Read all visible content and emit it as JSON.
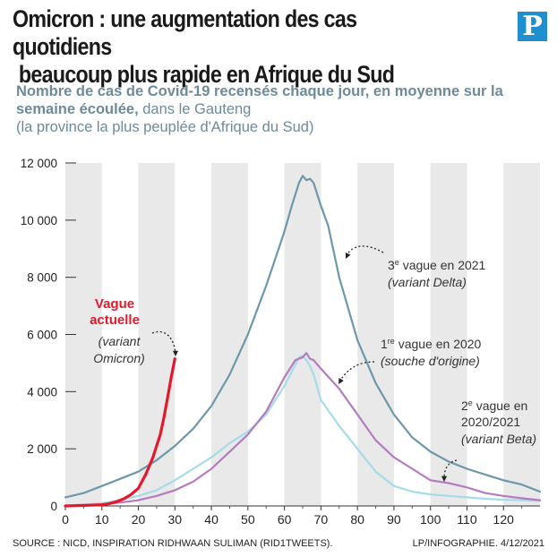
{
  "title_line1": "Omicron : une augmentation des cas quotidiens",
  "title_line2": "beaucoup plus rapide en Afrique du Sud",
  "logo": "P",
  "subtitle_bold": "Nombre de cas de Covid-19 recensés chaque jour, en moyenne sur la semaine écoulée,",
  "subtitle_normal": " dans le Gauteng",
  "subtitle_line3": "(la province la plus peuplée d'Afrique du Sud)",
  "source": "SOURCE : NICD, INSPIRATION RIDHWAAN SULIMAN (RID1TWEETS).",
  "credit": "LP/INFOGRAPHIE.  4/12/2021",
  "annotations": {
    "current_l1": "Vague",
    "current_l2": "actuelle",
    "current_l3": "(variant",
    "current_l4": "Omicron)",
    "w3_sup": "e",
    "w3_pre": "3",
    "w3_rest": " vague en 2021",
    "w3_l2": "(variant Delta)",
    "w1_pre": "1",
    "w1_sup": "re",
    "w1_rest": " vague en 2020",
    "w1_l2": "(souche d'origine)",
    "w2_pre": "2",
    "w2_sup": "e",
    "w2_rest": " vague en",
    "w2_l2": "2020/2021",
    "w2_l3": "(variant Beta)"
  },
  "colors": {
    "current": "#e3192b",
    "wave3": "#6d97ab",
    "wave1": "#b47cc0",
    "wave2": "#a6dbea",
    "stripe": "#e9e9e9",
    "axis_text": "#222222"
  },
  "chart_data": {
    "type": "line",
    "title": "Omicron : une augmentation des cas quotidiens beaucoup plus rapide en Afrique du Sud",
    "xlim": [
      0,
      130
    ],
    "ylim": [
      0,
      12000
    ],
    "xticks": [
      0,
      10,
      20,
      30,
      40,
      50,
      60,
      70,
      80,
      90,
      100,
      110,
      120
    ],
    "yticks": [
      0,
      2000,
      4000,
      6000,
      8000,
      10000,
      12000
    ],
    "ytick_labels": [
      "0",
      "2 000",
      "4 000",
      "6 000",
      "8 000",
      "10 000",
      "12 000"
    ],
    "grid": "alternating vertical bands",
    "series": [
      {
        "name": "Vague actuelle (variant Omicron)",
        "color_key": "current",
        "x": [
          0,
          5,
          10,
          12,
          14,
          16,
          18,
          20,
          22,
          24,
          26,
          27,
          28,
          29,
          30
        ],
        "y": [
          0,
          20,
          40,
          80,
          150,
          250,
          400,
          620,
          1100,
          1700,
          2500,
          3100,
          3800,
          4500,
          5150
        ]
      },
      {
        "name": "3e vague en 2021 (variant Delta)",
        "color_key": "wave3",
        "x": [
          0,
          5,
          10,
          15,
          20,
          25,
          30,
          35,
          40,
          45,
          50,
          55,
          60,
          62,
          64,
          65,
          66,
          67,
          68,
          70,
          72,
          75,
          80,
          85,
          90,
          95,
          100,
          105,
          110,
          115,
          120,
          125,
          130
        ],
        "y": [
          300,
          450,
          700,
          950,
          1200,
          1600,
          2100,
          2700,
          3500,
          4600,
          6000,
          7700,
          9600,
          10500,
          11300,
          11550,
          11400,
          11450,
          11300,
          10500,
          9800,
          8000,
          5800,
          4300,
          3200,
          2400,
          1900,
          1550,
          1300,
          1100,
          900,
          750,
          500
        ]
      },
      {
        "name": "1re vague en 2020 (souche d'origine)",
        "color_key": "wave1",
        "x": [
          0,
          5,
          10,
          15,
          20,
          25,
          30,
          35,
          40,
          45,
          50,
          55,
          60,
          63,
          65,
          66,
          67,
          68,
          70,
          75,
          80,
          85,
          90,
          95,
          100,
          105,
          110,
          115,
          120,
          125,
          130
        ],
        "y": [
          0,
          20,
          60,
          120,
          200,
          350,
          550,
          850,
          1300,
          1900,
          2500,
          3300,
          4500,
          5100,
          5200,
          5350,
          5150,
          5100,
          4800,
          4100,
          3200,
          2300,
          1700,
          1300,
          900,
          800,
          650,
          450,
          350,
          270,
          200
        ]
      },
      {
        "name": "2e vague en 2020/2021 (variant Beta)",
        "color_key": "wave2",
        "x": [
          0,
          5,
          10,
          15,
          20,
          25,
          30,
          35,
          40,
          45,
          50,
          55,
          60,
          62,
          64,
          65,
          66,
          67,
          68,
          70,
          75,
          80,
          85,
          90,
          95,
          100,
          105,
          110,
          115,
          120,
          125,
          130
        ],
        "y": [
          0,
          40,
          100,
          200,
          350,
          550,
          900,
          1300,
          1700,
          2200,
          2600,
          3200,
          4200,
          4700,
          5200,
          5250,
          5100,
          4900,
          4600,
          3700,
          2800,
          2000,
          1200,
          700,
          500,
          400,
          350,
          300,
          250,
          220,
          200,
          180
        ]
      }
    ]
  }
}
